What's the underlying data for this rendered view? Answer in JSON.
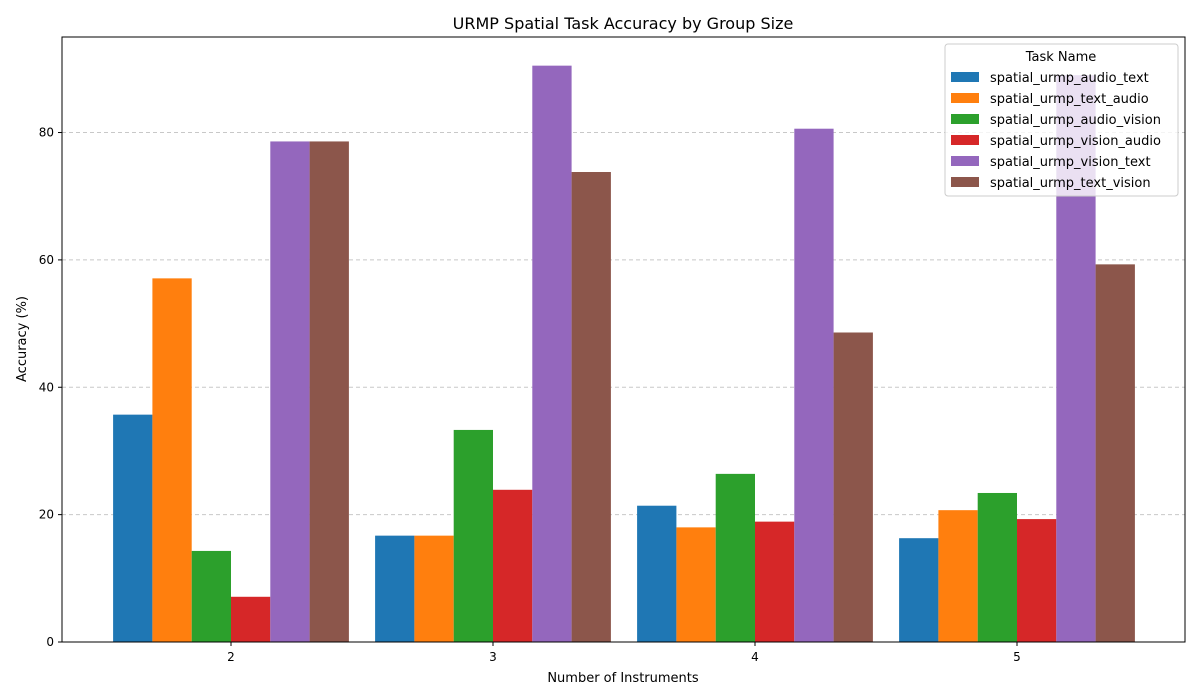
{
  "chart_data": {
    "type": "bar",
    "title": "URMP Spatial Task Accuracy by Group Size",
    "xlabel": "Number of Instruments",
    "ylabel": "Accuracy (%)",
    "categories": [
      "2",
      "3",
      "4",
      "5"
    ],
    "ylim": [
      0,
      95
    ],
    "yticks": [
      0,
      20,
      40,
      60,
      80
    ],
    "grid": "y-dashed",
    "legend": {
      "title": "Task Name",
      "placement": "top-right"
    },
    "series": [
      {
        "name": "spatial_urmp_audio_text",
        "color": "#1f77b4",
        "values": [
          35.7,
          16.7,
          21.4,
          16.3
        ]
      },
      {
        "name": "spatial_urmp_text_audio",
        "color": "#ff7f0e",
        "values": [
          57.1,
          16.7,
          18.0,
          20.7
        ]
      },
      {
        "name": "spatial_urmp_audio_vision",
        "color": "#2ca02c",
        "values": [
          14.3,
          33.3,
          26.4,
          23.4
        ]
      },
      {
        "name": "spatial_urmp_vision_audio",
        "color": "#d62728",
        "values": [
          7.1,
          23.9,
          18.9,
          19.3
        ]
      },
      {
        "name": "spatial_urmp_vision_text",
        "color": "#9467bd",
        "values": [
          78.6,
          90.5,
          80.6,
          89.0
        ]
      },
      {
        "name": "spatial_urmp_text_vision",
        "color": "#8c564b",
        "values": [
          78.6,
          73.8,
          48.6,
          59.3
        ]
      }
    ]
  }
}
